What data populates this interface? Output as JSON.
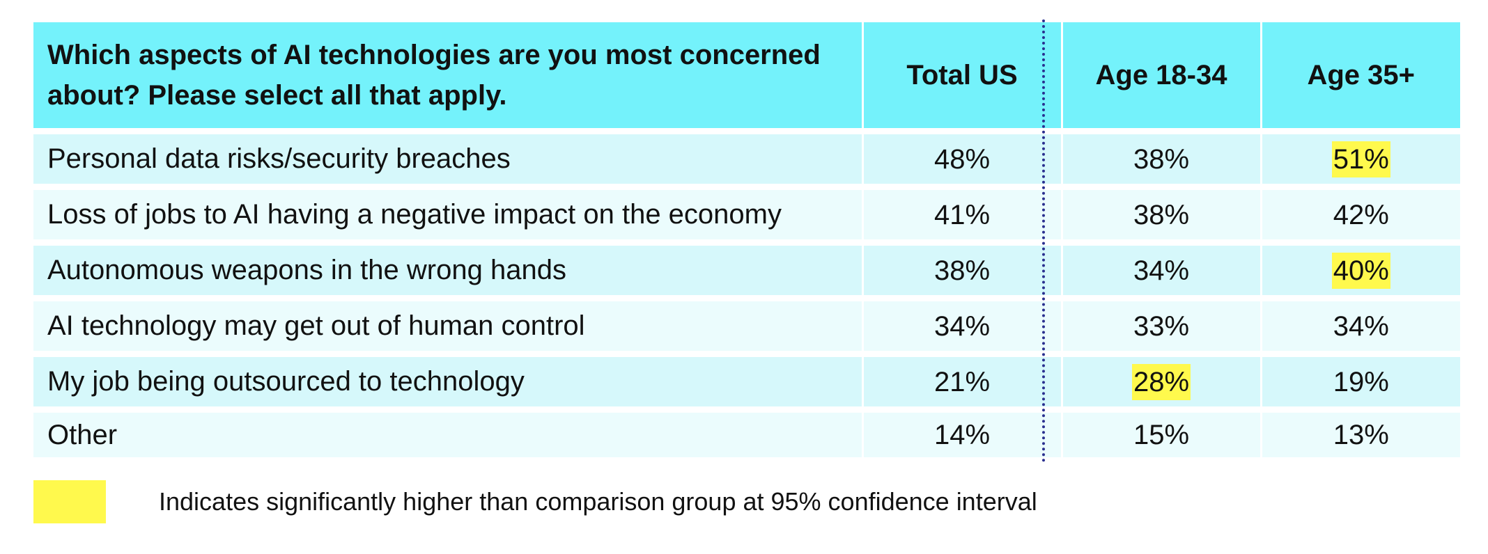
{
  "table": {
    "question": "Which aspects of AI technologies are you most concerned about? Please select all that apply.",
    "columns": [
      "Total US",
      "Age 18-34",
      "Age 35+"
    ],
    "rows": [
      {
        "label": "Personal data risks/security breaches",
        "values": [
          "48%",
          "38%",
          "51%"
        ],
        "highlight": [
          false,
          false,
          true
        ]
      },
      {
        "label": "Loss of jobs to AI having a negative impact on the economy",
        "values": [
          "41%",
          "38%",
          "42%"
        ],
        "highlight": [
          false,
          false,
          false
        ]
      },
      {
        "label": "Autonomous weapons in the wrong hands",
        "values": [
          "38%",
          "34%",
          "40%"
        ],
        "highlight": [
          false,
          false,
          true
        ]
      },
      {
        "label": "AI technology may get out of human control",
        "values": [
          "34%",
          "33%",
          "34%"
        ],
        "highlight": [
          false,
          false,
          false
        ]
      },
      {
        "label": "My job being outsourced to technology",
        "values": [
          "21%",
          "28%",
          "19%"
        ],
        "highlight": [
          false,
          true,
          false
        ]
      },
      {
        "label": "Other",
        "values": [
          "14%",
          "15%",
          "13%"
        ],
        "highlight": [
          false,
          false,
          false
        ]
      }
    ]
  },
  "legend": {
    "text": "Indicates significantly higher than comparison group at 95% confidence interval"
  },
  "colors": {
    "header_bg": "#74f2fb",
    "row_bg_odd": "#d6f8fb",
    "row_bg_even": "#ebfcfd",
    "highlight": "#fff94d",
    "divider": "#2a2f8f"
  }
}
